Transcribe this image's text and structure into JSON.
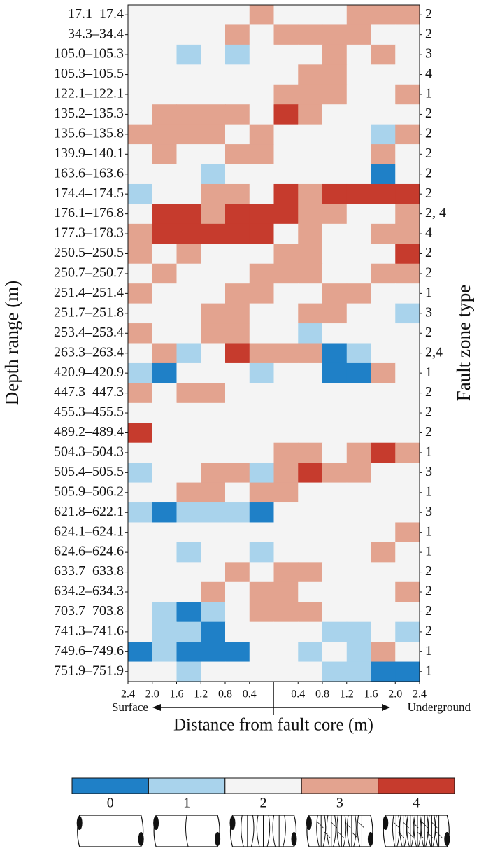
{
  "chart_data": {
    "type": "heatmap",
    "ylabel": "Depth range (m)",
    "y2label": "Fault zone type",
    "xlabel": "Distance from fault core (m)",
    "left_arrow_label": "Surface",
    "right_arrow_label": "Underground",
    "xlim": [
      -2.4,
      2.4
    ],
    "xticks": [
      {
        "value": -2.4,
        "label": "2.4"
      },
      {
        "value": -2.0,
        "label": "2.0"
      },
      {
        "value": -1.6,
        "label": "1.6"
      },
      {
        "value": -1.2,
        "label": "1.2"
      },
      {
        "value": -0.8,
        "label": "0.8"
      },
      {
        "value": -0.4,
        "label": "0.4"
      },
      {
        "value": 0.4,
        "label": "0.4"
      },
      {
        "value": 0.8,
        "label": "0.8"
      },
      {
        "value": 1.2,
        "label": "1.2"
      },
      {
        "value": 1.6,
        "label": "1.6"
      },
      {
        "value": 2.0,
        "label": "2.0"
      },
      {
        "value": 2.4,
        "label": "2.4"
      }
    ],
    "categories": [
      "17.1–17.4",
      "34.3–34.4",
      "105.0–105.3",
      "105.3–105.5",
      "122.1–122.1",
      "135.2–135.3",
      "135.6–135.8",
      "139.9–140.1",
      "163.6–163.6",
      "174.4–174.5",
      "176.1–176.8",
      "177.3–178.3",
      "250.5–250.5",
      "250.7–250.7",
      "251.4–251.4",
      "251.7–251.8",
      "253.4–253.4",
      "263.3–263.4",
      "420.9–420.9",
      "447.3–447.3",
      "455.3–455.5",
      "489.2–489.4",
      "504.3–504.3",
      "505.4–505.5",
      "505.9–506.2",
      "621.8–622.1",
      "624.1–624.1",
      "624.6–624.6",
      "633.7–633.8",
      "634.2–634.3",
      "703.7–703.8",
      "741.3–741.6",
      "749.6–749.6",
      "751.9–751.9"
    ],
    "fault_zone_types": [
      "2",
      "2",
      "3",
      "4",
      "1",
      "2",
      "2",
      "2",
      "2",
      "2",
      "2, 4",
      "4",
      "2",
      "2",
      "1",
      "3",
      "2",
      "2,4",
      "1",
      "2",
      "2",
      "2",
      "1",
      "3",
      "1",
      "3",
      "1",
      "1",
      "2",
      "2",
      "2",
      "2",
      "1",
      "1"
    ],
    "values": [
      [
        2,
        2,
        2,
        2,
        2,
        3,
        2,
        2,
        2,
        3,
        3,
        3
      ],
      [
        2,
        2,
        2,
        2,
        3,
        2,
        3,
        3,
        3,
        3,
        2,
        2
      ],
      [
        2,
        2,
        1,
        2,
        1,
        2,
        2,
        2,
        3,
        2,
        3,
        2
      ],
      [
        2,
        2,
        2,
        2,
        2,
        2,
        2,
        3,
        3,
        2,
        2,
        2
      ],
      [
        2,
        2,
        2,
        2,
        2,
        2,
        3,
        3,
        3,
        2,
        2,
        3
      ],
      [
        2,
        3,
        3,
        3,
        3,
        2,
        4,
        3,
        2,
        2,
        2,
        2
      ],
      [
        3,
        3,
        3,
        3,
        2,
        3,
        2,
        2,
        2,
        2,
        1,
        3
      ],
      [
        2,
        3,
        2,
        2,
        3,
        3,
        2,
        2,
        2,
        2,
        3,
        2
      ],
      [
        2,
        2,
        2,
        1,
        2,
        2,
        2,
        2,
        2,
        2,
        0,
        2
      ],
      [
        1,
        2,
        2,
        3,
        3,
        2,
        4,
        3,
        4,
        4,
        4,
        4
      ],
      [
        2,
        4,
        4,
        3,
        4,
        4,
        4,
        3,
        3,
        2,
        2,
        3
      ],
      [
        3,
        4,
        4,
        4,
        4,
        4,
        2,
        3,
        2,
        2,
        3,
        3
      ],
      [
        3,
        2,
        3,
        2,
        2,
        2,
        3,
        3,
        2,
        2,
        2,
        4
      ],
      [
        2,
        3,
        2,
        2,
        2,
        3,
        3,
        3,
        2,
        2,
        3,
        3
      ],
      [
        3,
        2,
        2,
        2,
        3,
        3,
        2,
        2,
        3,
        3,
        2,
        2
      ],
      [
        2,
        2,
        2,
        3,
        3,
        2,
        2,
        3,
        3,
        2,
        2,
        1
      ],
      [
        3,
        2,
        2,
        3,
        3,
        2,
        2,
        1,
        2,
        2,
        2,
        2
      ],
      [
        2,
        3,
        1,
        2,
        4,
        3,
        3,
        3,
        0,
        1,
        2,
        2
      ],
      [
        1,
        0,
        2,
        2,
        2,
        1,
        2,
        2,
        0,
        0,
        3,
        2
      ],
      [
        3,
        2,
        3,
        3,
        2,
        2,
        2,
        2,
        2,
        2,
        2,
        2
      ],
      [
        2,
        2,
        2,
        2,
        2,
        2,
        2,
        2,
        2,
        2,
        2,
        2
      ],
      [
        4,
        2,
        2,
        2,
        2,
        2,
        2,
        2,
        2,
        2,
        2,
        2
      ],
      [
        2,
        2,
        2,
        2,
        2,
        2,
        3,
        3,
        2,
        3,
        4,
        3
      ],
      [
        1,
        2,
        2,
        3,
        3,
        1,
        3,
        4,
        3,
        3,
        2,
        2
      ],
      [
        2,
        2,
        3,
        3,
        2,
        3,
        3,
        2,
        2,
        2,
        2,
        2
      ],
      [
        1,
        0,
        1,
        1,
        1,
        0,
        2,
        2,
        2,
        2,
        2,
        2
      ],
      [
        2,
        2,
        2,
        2,
        2,
        2,
        2,
        2,
        2,
        2,
        2,
        3
      ],
      [
        2,
        2,
        1,
        2,
        2,
        1,
        2,
        2,
        2,
        2,
        3,
        2
      ],
      [
        2,
        2,
        2,
        2,
        3,
        2,
        3,
        3,
        2,
        2,
        2,
        2
      ],
      [
        2,
        2,
        2,
        3,
        2,
        3,
        3,
        2,
        2,
        2,
        2,
        3
      ],
      [
        2,
        1,
        0,
        1,
        2,
        3,
        3,
        3,
        2,
        2,
        2,
        2
      ],
      [
        2,
        1,
        1,
        0,
        2,
        2,
        2,
        2,
        1,
        1,
        2,
        1
      ],
      [
        0,
        1,
        0,
        0,
        0,
        2,
        2,
        1,
        2,
        1,
        3,
        2
      ],
      [
        2,
        2,
        1,
        2,
        2,
        2,
        2,
        2,
        1,
        1,
        0,
        0
      ]
    ],
    "colorbar": {
      "ticks": [
        0,
        1,
        2,
        3,
        4
      ],
      "colors": [
        "#1f80c7",
        "#a9d3ec",
        "#f4f4f4",
        "#e3a38f",
        "#c63b2d"
      ]
    }
  }
}
